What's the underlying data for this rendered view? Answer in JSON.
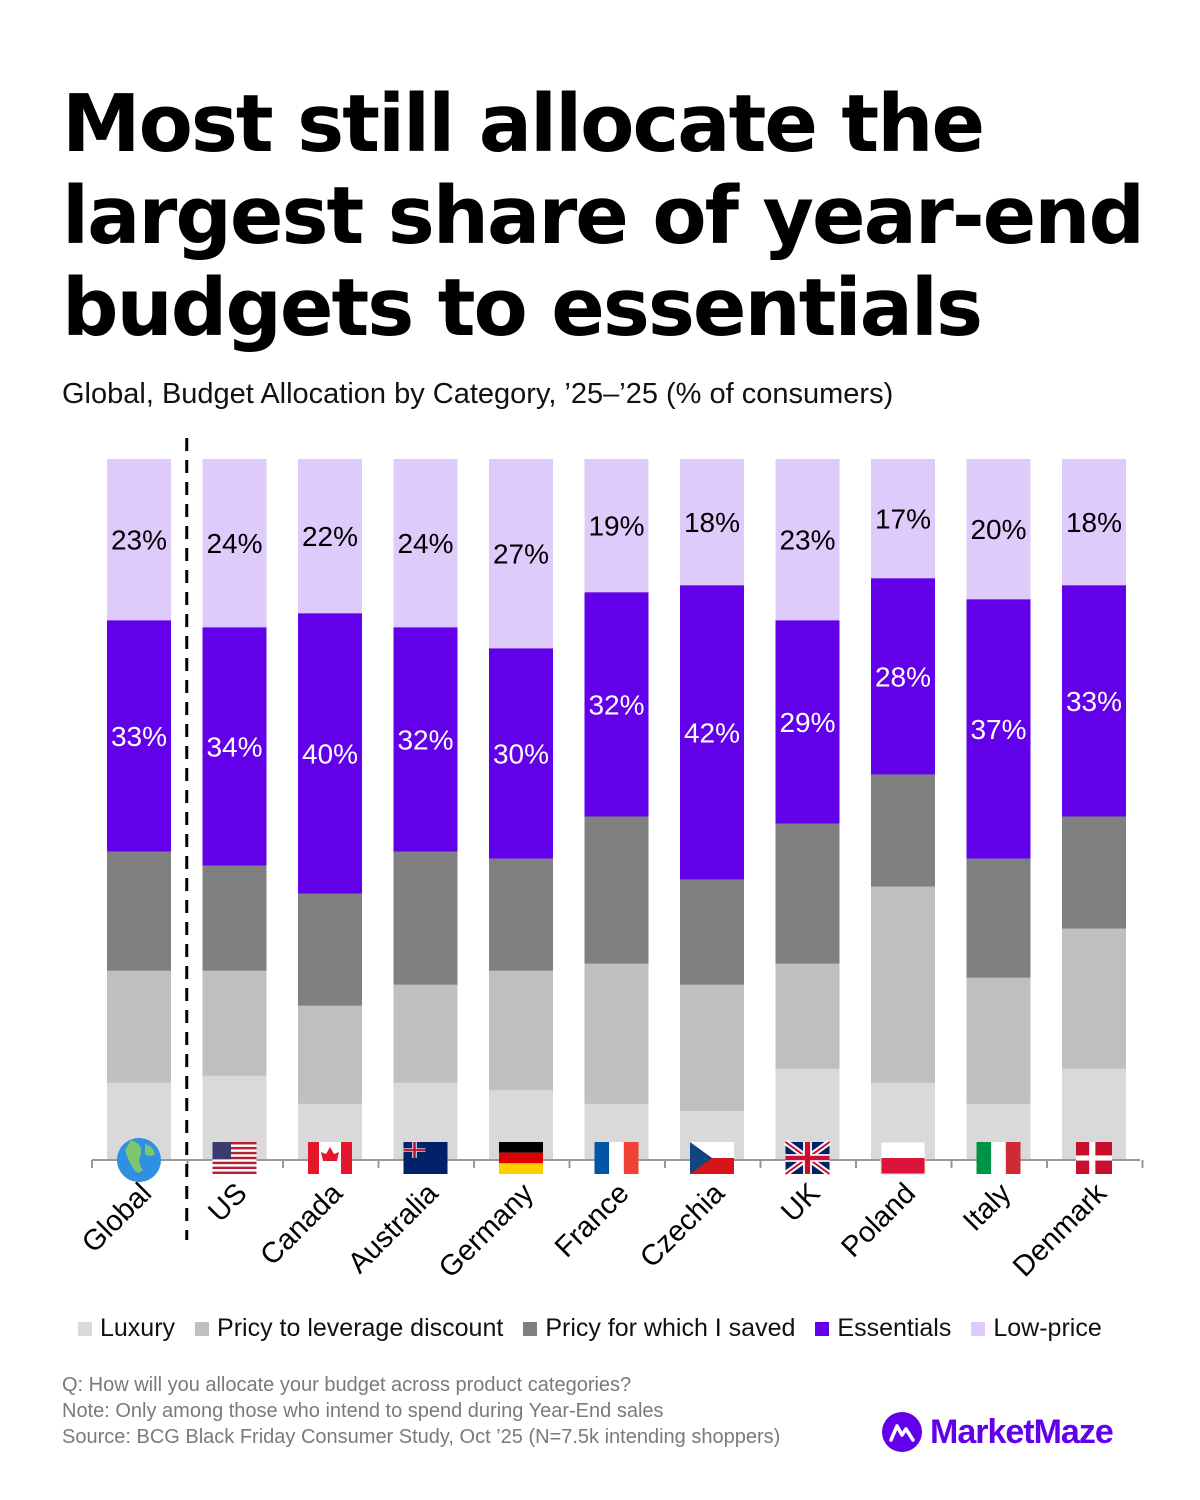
{
  "header": {
    "title": "Most still allocate the largest share of year-end budgets to essentials",
    "subtitle": "Global, Budget Allocation by Category, ’25–’25 (% of consumers)"
  },
  "chart_data": {
    "type": "bar",
    "stacked": true,
    "normalized_100": true,
    "title": "Most still allocate the largest share of year-end budgets to essentials",
    "subtitle": "Global, Budget Allocation by Category, ’25–’25 (% of consumers)",
    "xlabel": "",
    "ylabel": "",
    "ylim": [
      0,
      100
    ],
    "grid": false,
    "legend_position": "bottom",
    "categories": [
      "Global",
      "US",
      "Canada",
      "Australia",
      "Germany",
      "France",
      "Czechia",
      "UK",
      "Poland",
      "Italy",
      "Denmark"
    ],
    "category_icons": [
      "globe-icon",
      "flag-us-icon",
      "flag-canada-icon",
      "flag-australia-icon",
      "flag-germany-icon",
      "flag-france-icon",
      "flag-czechia-icon",
      "flag-uk-icon",
      "flag-poland-icon",
      "flag-italy-icon",
      "flag-denmark-icon"
    ],
    "separator_after_category": "Global",
    "series": [
      {
        "name": "Luxury",
        "color": "#d9d9d9",
        "labeled": false,
        "values": [
          11,
          12,
          8,
          11,
          10,
          8,
          7,
          13,
          11,
          8,
          13
        ]
      },
      {
        "name": "Pricy to leverage discount",
        "color": "#bfbfbf",
        "labeled": false,
        "values": [
          16,
          15,
          14,
          14,
          17,
          20,
          18,
          15,
          28,
          18,
          20
        ]
      },
      {
        "name": "Pricy for which I saved",
        "color": "#808080",
        "labeled": false,
        "values": [
          17,
          15,
          16,
          19,
          16,
          21,
          15,
          20,
          16,
          17,
          16
        ]
      },
      {
        "name": "Essentials",
        "color": "#6200ea",
        "labeled": true,
        "label_color": "#ffffff",
        "values": [
          33,
          34,
          40,
          32,
          30,
          32,
          42,
          29,
          28,
          37,
          33
        ]
      },
      {
        "name": "Low-price",
        "color": "#dfcbfb",
        "labeled": true,
        "label_color": "#000000",
        "values": [
          23,
          24,
          22,
          24,
          27,
          19,
          18,
          23,
          17,
          20,
          18
        ]
      }
    ]
  },
  "footer": {
    "notes": [
      "Q: How will you allocate your budget across product categories?",
      "Note: Only among those who intend to spend during Year-End sales",
      "Source: BCG Black Friday Consumer Study, Oct ’25 (N=7.5k intending shoppers)"
    ],
    "brand": "MarketMaze"
  }
}
